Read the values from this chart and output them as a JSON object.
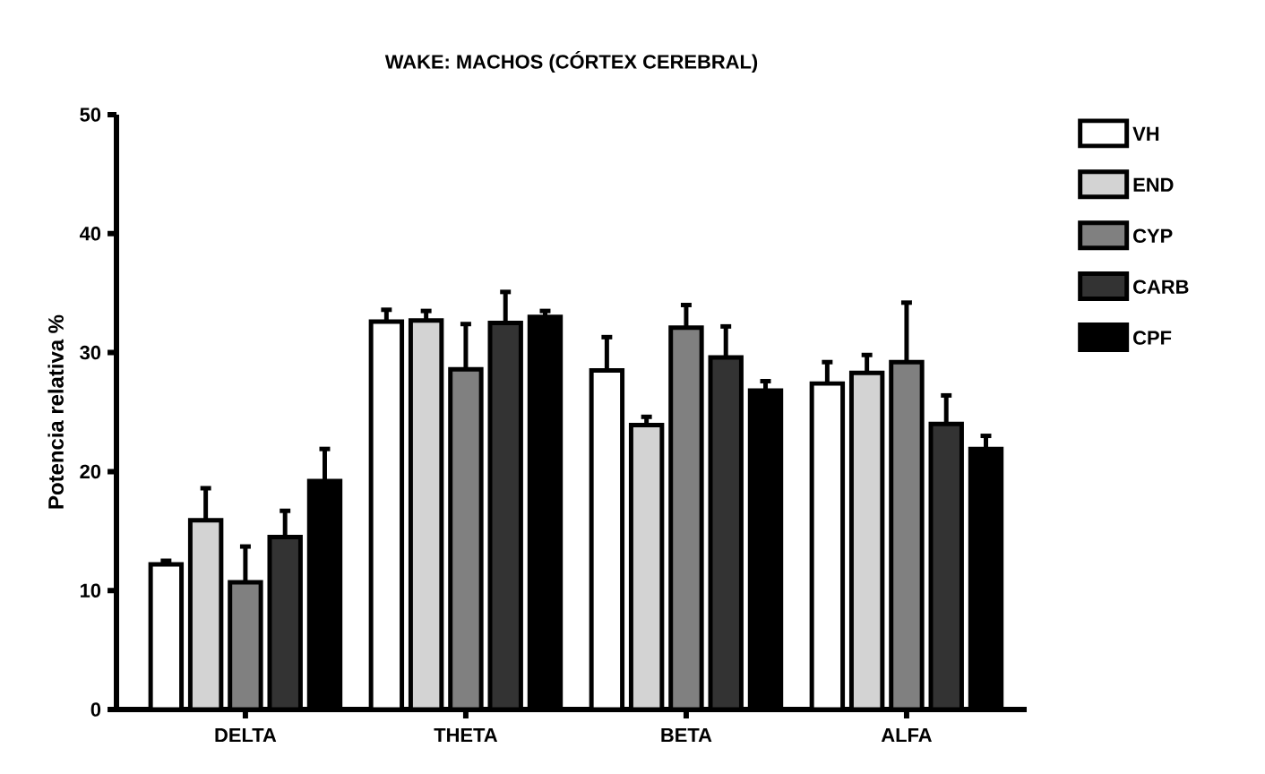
{
  "chart_data": {
    "type": "bar",
    "title": "WAKE: MACHOS (CÓRTEX CEREBRAL)",
    "ylabel": "Potencia relativa %",
    "categories": [
      "DELTA",
      "THETA",
      "BETA",
      "ALFA"
    ],
    "series": [
      {
        "name": "VH",
        "color": "#ffffff",
        "values": [
          12.2,
          32.6,
          28.5,
          27.4
        ],
        "errors": [
          [
            12.2,
            12.5
          ],
          [
            32.6,
            33.6
          ],
          [
            28.5,
            31.3
          ],
          [
            27.4,
            29.2
          ]
        ]
      },
      {
        "name": "END",
        "color": "#d3d3d3",
        "values": [
          15.9,
          32.7,
          23.9,
          28.3
        ],
        "errors": [
          [
            15.9,
            18.6
          ],
          [
            32.7,
            33.5
          ],
          [
            23.9,
            24.6
          ],
          [
            28.3,
            29.8
          ]
        ]
      },
      {
        "name": "CYP",
        "color": "#808080",
        "values": [
          10.7,
          28.6,
          32.1,
          29.2
        ],
        "errors": [
          [
            10.7,
            13.7
          ],
          [
            28.6,
            32.4
          ],
          [
            32.1,
            34.0
          ],
          [
            29.2,
            34.2
          ]
        ]
      },
      {
        "name": "CARB",
        "color": "#333333",
        "values": [
          14.5,
          32.5,
          29.6,
          24.0
        ],
        "errors": [
          [
            14.5,
            16.7
          ],
          [
            32.5,
            35.1
          ],
          [
            29.6,
            32.2
          ],
          [
            24.0,
            26.4
          ]
        ]
      },
      {
        "name": "CPF",
        "color": "#000000",
        "values": [
          19.2,
          33.0,
          26.8,
          21.9
        ],
        "errors": [
          [
            19.2,
            21.9
          ],
          [
            33.0,
            33.5
          ],
          [
            26.8,
            27.6
          ],
          [
            21.9,
            23.0
          ]
        ]
      }
    ],
    "ylim": [
      0,
      50
    ],
    "yticks": [
      0,
      10,
      20,
      30,
      40,
      50
    ],
    "grid": false,
    "legend": "right"
  }
}
